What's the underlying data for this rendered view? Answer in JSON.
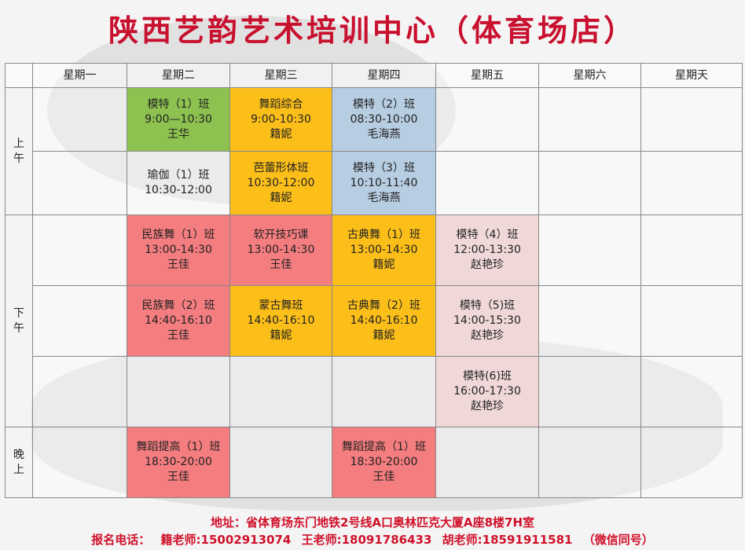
{
  "title": "陕西艺韵艺术培训中心（体育场店）",
  "days": [
    "星期一",
    "星期二",
    "星期三",
    "星期四",
    "星期五",
    "星期六",
    "星期天"
  ],
  "periods": {
    "morning": [
      "上",
      "午"
    ],
    "afternoon": [
      "下",
      "午"
    ],
    "evening": [
      "晚",
      "上"
    ]
  },
  "classes": {
    "tue_am1": {
      "name": "模特（1）班",
      "time": "9:00—10:30",
      "teacher": "王华"
    },
    "wed_am1": {
      "name": "舞蹈综合",
      "time": "9:00-10:30",
      "teacher": "籍妮"
    },
    "thu_am1": {
      "name": "模特（2）班",
      "time": "08:30-10:00",
      "teacher": "毛海燕"
    },
    "tue_am2": {
      "name": "瑜伽（1）班",
      "time": "10:30-12:00",
      "teacher": ""
    },
    "wed_am2": {
      "name": "芭蕾形体班",
      "time": "10:30-12:00",
      "teacher": "籍妮"
    },
    "thu_am2": {
      "name": "模特（3）班",
      "time": "10:10-11:40",
      "teacher": "毛海燕"
    },
    "tue_pm1": {
      "name": "民族舞（1）班",
      "time": "13:00-14:30",
      "teacher": "王佳"
    },
    "wed_pm1": {
      "name": "软开技巧课",
      "time": "13:00-14:30",
      "teacher": "王佳"
    },
    "thu_pm1": {
      "name": "古典舞（1）班",
      "time": "13:00-14:30",
      "teacher": "籍妮"
    },
    "fri_pm1": {
      "name": "模特（4）班",
      "time": "12:00-13:30",
      "teacher": "赵艳珍"
    },
    "tue_pm2": {
      "name": "民族舞（2）班",
      "time": "14:40-16:10",
      "teacher": "王佳"
    },
    "wed_pm2": {
      "name": "蒙古舞班",
      "time": "14:40-16:10",
      "teacher": "籍妮"
    },
    "thu_pm2": {
      "name": "古典舞（2）班",
      "time": "14:40-16:10",
      "teacher": "籍妮"
    },
    "fri_pm2": {
      "name": "模特（5)班",
      "time": "14:00-15:30",
      "teacher": "赵艳珍"
    },
    "fri_pm3": {
      "name": "模特(6)班",
      "time": "16:00-17:30",
      "teacher": "赵艳珍"
    },
    "tue_ev": {
      "name": "舞蹈提高（1）班",
      "time": "18:30-20:00",
      "teacher": "王佳"
    },
    "thu_ev": {
      "name": "舞蹈提高（1）班",
      "time": "18:30-20:00",
      "teacher": "王佳"
    }
  },
  "footer": {
    "address": "地址：省体育场东门地铁2号线A口奥林匹克大厦A座8楼7H室",
    "phone_label": "报名电话：",
    "contact1": "籍老师:15002913074",
    "contact2": "王老师:18091786433",
    "contact3": "胡老师:18591911581",
    "wechat_note": "（微信同号）"
  },
  "colors": {
    "title_red": "#c8102e",
    "green": "#8dc150",
    "orange": "#fcbf19",
    "blue": "#b7cde1",
    "red": "#f47d80",
    "pink": "#f0d8d9"
  }
}
